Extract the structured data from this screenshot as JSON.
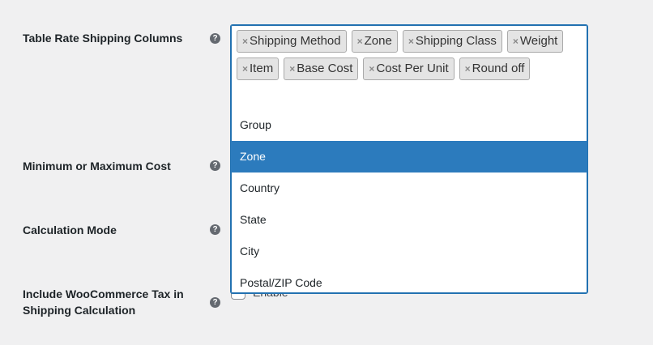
{
  "fields": [
    {
      "label": "Table Rate Shipping Columns"
    },
    {
      "label": "Minimum or Maximum Cost"
    },
    {
      "label": "Calculation Mode"
    },
    {
      "label": "Include WooCommerce Tax in Shipping Calculation",
      "checkbox_label": "Enable",
      "checked": true
    }
  ],
  "help_glyph": "?",
  "remove_glyph": "×",
  "selected_tags": [
    "Shipping Method",
    "Zone",
    "Shipping Class",
    "Weight",
    "Item",
    "Base Cost",
    "Cost Per Unit",
    "Round off"
  ],
  "options": [
    "Group",
    "Zone",
    "Country",
    "State",
    "City",
    "Postal/ZIP Code"
  ],
  "highlighted_option": "Zone",
  "colors": {
    "highlight": "#2c7bbd",
    "focus_border": "#2271b1"
  }
}
